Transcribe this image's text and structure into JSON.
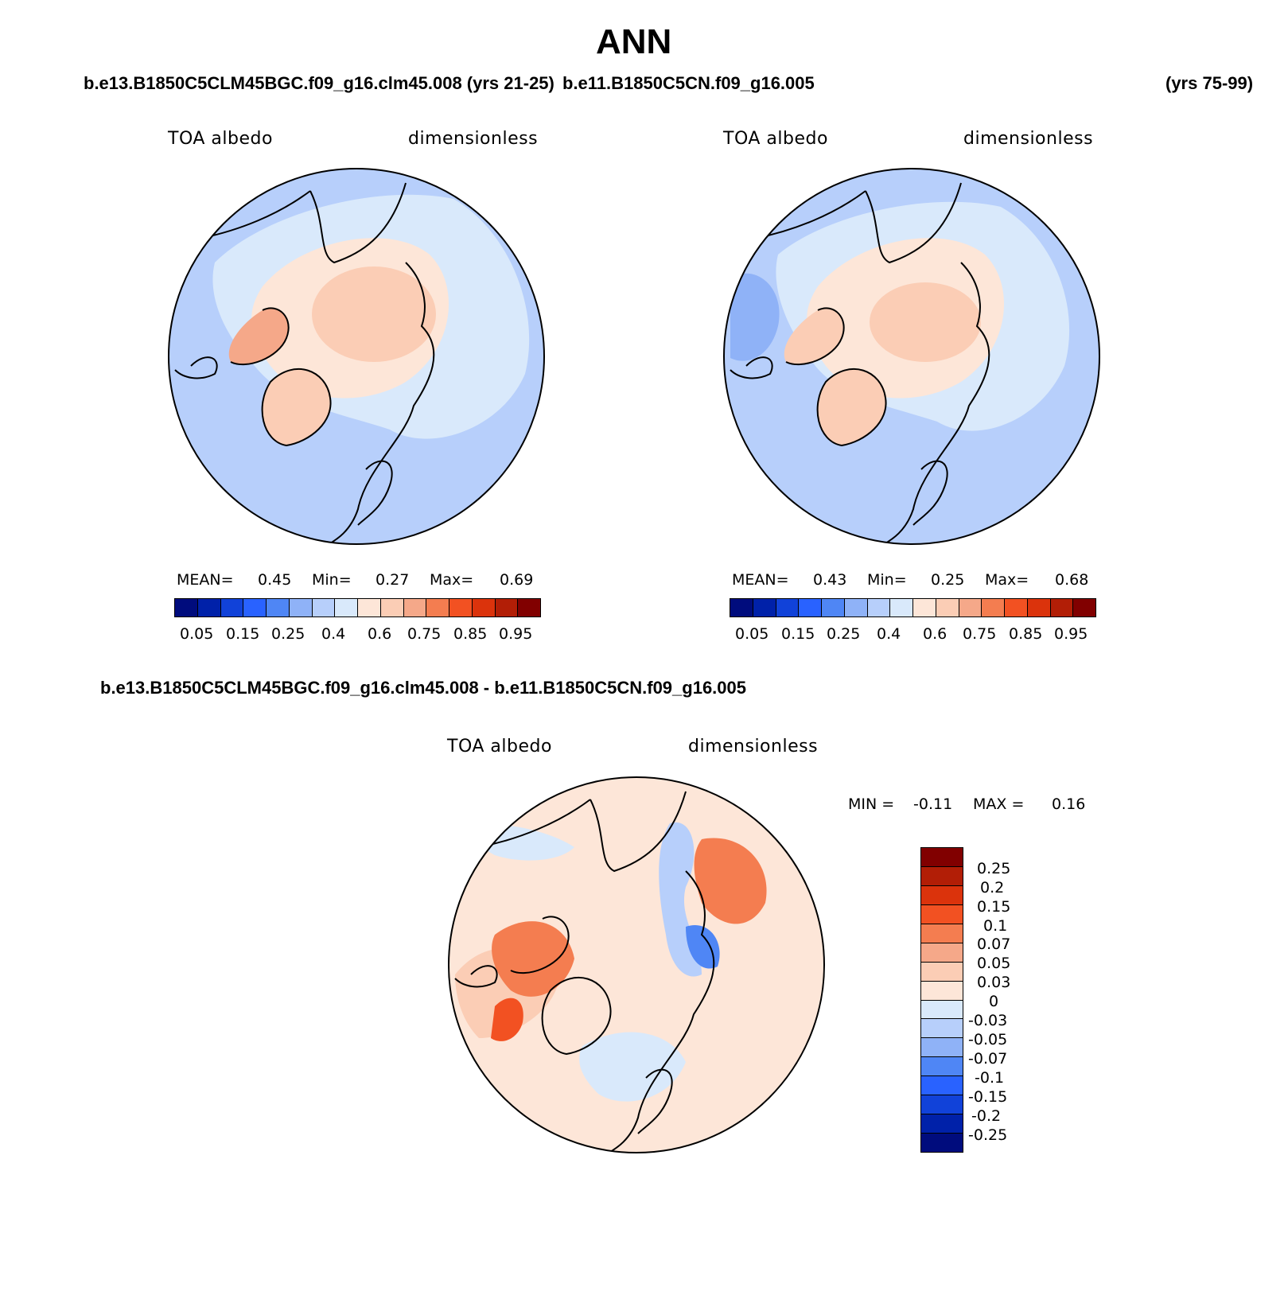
{
  "page_title": "ANN",
  "panels": [
    {
      "case": "b.e13.B1850C5CLM45BGC.f09_g16.clm45.008 (yrs 21-25)",
      "variable": "TOA albedo",
      "units": "dimensionless",
      "stats": {
        "mean_label": "MEAN=",
        "mean": "0.45",
        "min_label": "Min=",
        "min": "0.27",
        "max_label": "Max=",
        "max": "0.69"
      },
      "colorbar_ticks": [
        "0.05",
        "0.15",
        "0.25",
        "0.4",
        "0.6",
        "0.75",
        "0.85",
        "0.95"
      ]
    },
    {
      "case": "b.e11.B1850C5CN.f09_g16.005",
      "years": "(yrs 75-99)",
      "variable": "TOA albedo",
      "units": "dimensionless",
      "stats": {
        "mean_label": "MEAN=",
        "mean": "0.43",
        "min_label": "Min=",
        "min": "0.25",
        "max_label": "Max=",
        "max": "0.68"
      },
      "colorbar_ticks": [
        "0.05",
        "0.15",
        "0.25",
        "0.4",
        "0.6",
        "0.75",
        "0.85",
        "0.95"
      ]
    }
  ],
  "diff_panel": {
    "case": "b.e13.B1850C5CLM45BGC.f09_g16.clm45.008 - b.e11.B1850C5CN.f09_g16.005",
    "variable": "TOA albedo",
    "units": "dimensionless",
    "minmax": {
      "min_label": "MIN =",
      "min": "-0.11",
      "max_label": "MAX =",
      "max": "0.16"
    },
    "colorbar_ticks": [
      "0.25",
      "0.2",
      "0.15",
      "0.1",
      "0.07",
      "0.05",
      "0.03",
      "0",
      "-0.03",
      "-0.05",
      "-0.07",
      "-0.1",
      "-0.15",
      "-0.2",
      "-0.25"
    ]
  },
  "colors": {
    "abs_scale": [
      "#000c7d",
      "#0021a9",
      "#1142d9",
      "#2962ff",
      "#4f86f5",
      "#8fb2f7",
      "#b7cffb",
      "#d9e9fb",
      "#fde6d8",
      "#fbcdb5",
      "#f5a889",
      "#f47d50",
      "#f25122",
      "#db330c",
      "#b21e06",
      "#810000"
    ],
    "diff_scale": [
      "#810000",
      "#b21e06",
      "#db330c",
      "#f25122",
      "#f47d50",
      "#f5a889",
      "#fbcdb5",
      "#fde6d8",
      "#d9e9fb",
      "#b7cffb",
      "#8fb2f7",
      "#4f86f5",
      "#2962ff",
      "#1142d9",
      "#0021a9",
      "#000c7d"
    ]
  },
  "chart_data": [
    {
      "type": "heatmap",
      "projection": "north polar stereographic",
      "title": "TOA albedo",
      "units": "dimensionless",
      "mean": 0.45,
      "min": 0.27,
      "max": 0.69,
      "contour_levels": [
        0.05,
        0.1,
        0.15,
        0.2,
        0.25,
        0.3,
        0.4,
        0.5,
        0.6,
        0.7,
        0.75,
        0.8,
        0.85,
        0.9,
        0.95
      ]
    },
    {
      "type": "heatmap",
      "projection": "north polar stereographic",
      "title": "TOA albedo",
      "units": "dimensionless",
      "mean": 0.43,
      "min": 0.25,
      "max": 0.68,
      "contour_levels": [
        0.05,
        0.1,
        0.15,
        0.2,
        0.25,
        0.3,
        0.4,
        0.5,
        0.6,
        0.7,
        0.75,
        0.8,
        0.85,
        0.9,
        0.95
      ]
    },
    {
      "type": "heatmap",
      "projection": "north polar stereographic",
      "title": "TOA albedo (difference)",
      "units": "dimensionless",
      "min": -0.11,
      "max": 0.16,
      "contour_levels": [
        -0.25,
        -0.2,
        -0.15,
        -0.1,
        -0.07,
        -0.05,
        -0.03,
        0,
        0.03,
        0.05,
        0.07,
        0.1,
        0.15,
        0.2,
        0.25
      ]
    }
  ]
}
